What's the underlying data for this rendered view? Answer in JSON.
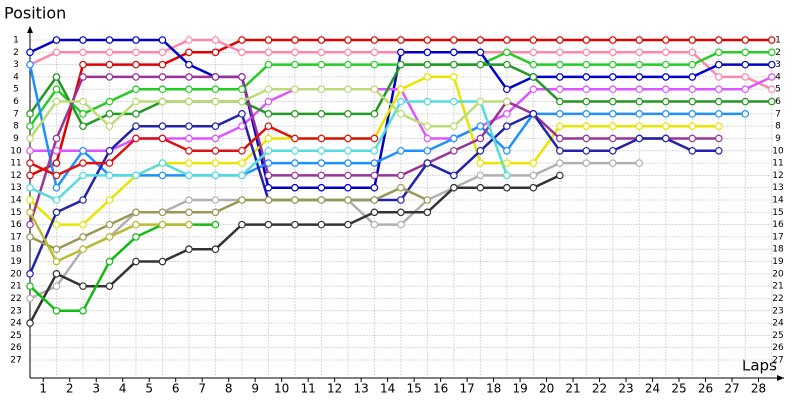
{
  "chart_data": {
    "type": "line",
    "title": "Position",
    "x_label": "Laps",
    "x": [
      0,
      1,
      2,
      3,
      4,
      5,
      6,
      7,
      8,
      9,
      10,
      11,
      12,
      13,
      14,
      15,
      16,
      17,
      18,
      19,
      20,
      21,
      22,
      23,
      24,
      25,
      26,
      27,
      28
    ],
    "xlim": [
      0,
      28.5
    ],
    "xticks": [
      {
        "value": 0.5,
        "label": "1"
      },
      {
        "value": 1.5,
        "label": "2"
      },
      {
        "value": 2.5,
        "label": "3"
      },
      {
        "value": 3.5,
        "label": "4"
      },
      {
        "value": 4.5,
        "label": "5"
      },
      {
        "value": 5.5,
        "label": "6"
      },
      {
        "value": 6.5,
        "label": "7"
      },
      {
        "value": 7.5,
        "label": "8"
      },
      {
        "value": 8.5,
        "label": "9"
      },
      {
        "value": 9.5,
        "label": "10"
      },
      {
        "value": 10.5,
        "label": "11"
      },
      {
        "value": 11.5,
        "label": "12"
      },
      {
        "value": 12.5,
        "label": "13"
      },
      {
        "value": 13.5,
        "label": "14"
      },
      {
        "value": 14.5,
        "label": "15"
      },
      {
        "value": 15.5,
        "label": "16"
      },
      {
        "value": 16.5,
        "label": "17"
      },
      {
        "value": 17.5,
        "label": "18"
      },
      {
        "value": 18.5,
        "label": "19"
      },
      {
        "value": 19.5,
        "label": "20"
      },
      {
        "value": 20.5,
        "label": "21"
      },
      {
        "value": 21.5,
        "label": "22"
      },
      {
        "value": 22.5,
        "label": "23"
      },
      {
        "value": 23.5,
        "label": "24"
      },
      {
        "value": 24.5,
        "label": "25"
      },
      {
        "value": 25.5,
        "label": "26"
      },
      {
        "value": 26.5,
        "label": "27"
      },
      {
        "value": 27.5,
        "label": "28"
      }
    ],
    "ylim": [
      28,
      0
    ],
    "y_inverted": true,
    "yticks": [
      1,
      2,
      3,
      4,
      5,
      6,
      7,
      8,
      9,
      10,
      11,
      12,
      13,
      14,
      15,
      16,
      17,
      18,
      19,
      20,
      21,
      22,
      23,
      24,
      25,
      26,
      27
    ],
    "grid": true,
    "marker_fill": "#ffffff",
    "series": [
      {
        "color": "#e00000",
        "values": [
          12,
          11,
          3,
          3,
          3,
          3,
          2,
          2,
          1,
          1,
          1,
          1,
          1,
          1,
          1,
          1,
          1,
          1,
          1,
          1,
          1,
          1,
          1,
          1,
          1,
          1,
          1,
          1,
          1
        ]
      },
      {
        "color": "#ff88aa",
        "values": [
          3,
          2,
          2,
          2,
          2,
          2,
          1,
          1,
          2,
          2,
          2,
          2,
          2,
          2,
          2,
          2,
          2,
          2,
          2,
          2,
          2,
          2,
          2,
          2,
          2,
          2,
          4,
          4,
          5
        ]
      },
      {
        "color": "#22cc22",
        "values": [
          8,
          5,
          7,
          6,
          5,
          5,
          5,
          5,
          5,
          3,
          3,
          3,
          3,
          3,
          3,
          3,
          3,
          3,
          2,
          3,
          3,
          3,
          3,
          3,
          3,
          3,
          2,
          2,
          2
        ]
      },
      {
        "color": "#0000cc",
        "values": [
          2,
          1,
          1,
          1,
          1,
          1,
          3,
          4,
          4,
          13,
          13,
          13,
          13,
          13,
          2,
          2,
          2,
          2,
          5,
          4,
          4,
          4,
          4,
          4,
          4,
          4,
          3,
          3,
          3
        ]
      },
      {
        "color": "#dd55ff",
        "values": [
          10,
          10,
          10,
          10,
          9,
          9,
          9,
          9,
          8,
          6,
          5,
          5,
          5,
          5,
          5,
          9,
          9,
          8,
          7,
          5,
          5,
          5,
          5,
          5,
          5,
          5,
          5,
          5,
          4
        ]
      },
      {
        "color": "#229922",
        "values": [
          7,
          4,
          8,
          7,
          7,
          6,
          6,
          6,
          6,
          7,
          7,
          7,
          7,
          7,
          3,
          3,
          3,
          3,
          3,
          4,
          6,
          6,
          6,
          6,
          6,
          6,
          6,
          6,
          6
        ]
      },
      {
        "color": "#1e90ff",
        "values": [
          3,
          13,
          10,
          12,
          12,
          12,
          12,
          12,
          12,
          11,
          11,
          11,
          11,
          11,
          10,
          10,
          9,
          8,
          10,
          7,
          7,
          7,
          7,
          7,
          7,
          7,
          7,
          7,
          null
        ]
      },
      {
        "color": "#e6e600",
        "values": [
          14,
          16,
          16,
          14,
          12,
          11,
          11,
          11,
          11,
          9,
          9,
          9,
          9,
          9,
          5,
          4,
          4,
          11,
          11,
          11,
          8,
          8,
          8,
          8,
          8,
          8,
          8,
          null,
          null
        ]
      },
      {
        "color": "#993399",
        "values": [
          16,
          9,
          4,
          4,
          4,
          4,
          4,
          4,
          4,
          12,
          12,
          12,
          12,
          12,
          12,
          11,
          10,
          9,
          6,
          7,
          9,
          9,
          9,
          9,
          9,
          9,
          9,
          null,
          null
        ]
      },
      {
        "color": "#2222aa",
        "values": [
          20,
          15,
          14,
          10,
          8,
          8,
          8,
          8,
          7,
          14,
          14,
          14,
          14,
          14,
          14,
          11,
          12,
          10,
          8,
          7,
          10,
          10,
          10,
          9,
          9,
          10,
          10,
          null,
          null
        ]
      },
      {
        "color": "#b0b0b0",
        "values": [
          22,
          21,
          18,
          17,
          15,
          15,
          14,
          14,
          14,
          14,
          14,
          14,
          14,
          16,
          16,
          14,
          13,
          12,
          12,
          12,
          11,
          11,
          11,
          11,
          null,
          null,
          null,
          null,
          null
        ]
      },
      {
        "color": "#333333",
        "values": [
          24,
          20,
          21,
          21,
          19,
          19,
          18,
          18,
          16,
          16,
          16,
          16,
          16,
          15,
          15,
          15,
          13,
          13,
          13,
          13,
          12,
          null,
          null,
          null,
          null,
          null,
          null,
          null,
          null
        ]
      },
      {
        "color": "#55dddd",
        "values": [
          13,
          14,
          12,
          12,
          12,
          11,
          12,
          12,
          12,
          10,
          10,
          10,
          10,
          10,
          6,
          6,
          6,
          6,
          12,
          null,
          null,
          null,
          null,
          null,
          null,
          null,
          null,
          null,
          null
        ]
      },
      {
        "color": "#999955",
        "values": [
          17,
          18,
          17,
          16,
          15,
          15,
          15,
          15,
          14,
          14,
          14,
          14,
          14,
          14,
          13,
          14,
          null,
          null,
          null,
          null,
          null,
          null,
          null,
          null,
          null,
          null,
          null,
          null,
          null
        ]
      },
      {
        "color": "#bbdd77",
        "values": [
          9,
          6,
          6,
          8,
          6,
          6,
          6,
          6,
          6,
          5,
          5,
          5,
          5,
          5,
          7,
          8,
          8,
          6,
          6,
          null,
          null,
          null,
          null,
          null,
          null,
          null,
          null,
          null,
          null
        ]
      },
      {
        "color": "#dd1111",
        "values": [
          11,
          12,
          11,
          11,
          9,
          9,
          10,
          10,
          10,
          8,
          9,
          9,
          9,
          9,
          null,
          null,
          null,
          null,
          null,
          null,
          null,
          null,
          null,
          null,
          null,
          null,
          null,
          null,
          null
        ]
      },
      {
        "color": "#11bb11",
        "values": [
          21,
          23,
          23,
          19,
          17,
          16,
          16,
          16,
          null,
          null,
          null,
          null,
          null,
          null,
          null,
          null,
          null,
          null,
          null,
          null,
          null,
          null,
          null,
          null,
          null,
          null,
          null,
          null,
          null
        ]
      },
      {
        "color": "#bbbb33",
        "values": [
          15,
          19,
          18,
          17,
          16,
          16,
          16,
          null,
          null,
          null,
          null,
          null,
          null,
          null,
          null,
          null,
          null,
          null,
          null,
          null,
          null,
          null,
          null,
          null,
          null,
          null,
          null,
          null,
          null
        ]
      }
    ]
  }
}
